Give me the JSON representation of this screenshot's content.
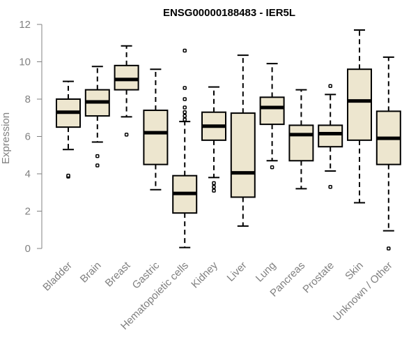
{
  "chart_data": {
    "type": "boxplot",
    "title": "ENSG00000188483 - IER5L",
    "xlabel": "",
    "ylabel": "Expression",
    "ylim": [
      0,
      12
    ],
    "yticks": [
      0,
      2,
      4,
      6,
      8,
      10,
      12
    ],
    "box_fill": "#ede6cf",
    "box_stroke": "#000000",
    "axis_color": "#808080",
    "categories": [
      "Bladder",
      "Brain",
      "Breast",
      "Gastric",
      "Hematopoietic cells",
      "Kidney",
      "Liver",
      "Lung",
      "Pancreas",
      "Prostate",
      "Skin",
      "Unknown / Other"
    ],
    "boxes": [
      {
        "name": "Bladder",
        "whisker_low": 5.3,
        "q1": 6.5,
        "median": 7.3,
        "q3": 8.0,
        "whisker_high": 8.95,
        "outliers": [
          3.85,
          3.9
        ]
      },
      {
        "name": "Brain",
        "whisker_low": 5.7,
        "q1": 7.1,
        "median": 7.85,
        "q3": 8.5,
        "whisker_high": 9.75,
        "outliers": [
          4.45,
          4.95
        ]
      },
      {
        "name": "Breast",
        "whisker_low": 7.05,
        "q1": 8.5,
        "median": 9.05,
        "q3": 9.8,
        "whisker_high": 10.85,
        "outliers": [
          6.1
        ]
      },
      {
        "name": "Gastric",
        "whisker_low": 3.15,
        "q1": 4.5,
        "median": 6.2,
        "q3": 7.4,
        "whisker_high": 9.6,
        "outliers": []
      },
      {
        "name": "Hematopoietic cells",
        "whisker_low": 0.05,
        "q1": 1.9,
        "median": 2.95,
        "q3": 3.9,
        "whisker_high": 6.8,
        "outliers": [
          6.9,
          7.1,
          7.3,
          7.55,
          8.0,
          8.6,
          10.6
        ]
      },
      {
        "name": "Kidney",
        "whisker_low": 3.8,
        "q1": 5.8,
        "median": 6.55,
        "q3": 7.3,
        "whisker_high": 8.65,
        "outliers": [
          3.1,
          3.3,
          3.5
        ]
      },
      {
        "name": "Liver",
        "whisker_low": 1.2,
        "q1": 2.75,
        "median": 4.05,
        "q3": 7.25,
        "whisker_high": 10.35,
        "outliers": []
      },
      {
        "name": "Lung",
        "whisker_low": 4.7,
        "q1": 6.65,
        "median": 7.55,
        "q3": 8.1,
        "whisker_high": 9.9,
        "outliers": [
          4.35
        ]
      },
      {
        "name": "Pancreas",
        "whisker_low": 3.2,
        "q1": 4.7,
        "median": 6.1,
        "q3": 6.6,
        "whisker_high": 8.5,
        "outliers": []
      },
      {
        "name": "Prostate",
        "whisker_low": 4.15,
        "q1": 5.45,
        "median": 6.15,
        "q3": 6.6,
        "whisker_high": 8.25,
        "outliers": [
          3.3,
          8.7
        ]
      },
      {
        "name": "Skin",
        "whisker_low": 2.45,
        "q1": 5.8,
        "median": 7.9,
        "q3": 9.6,
        "whisker_high": 11.7,
        "outliers": []
      },
      {
        "name": "Unknown / Other",
        "whisker_low": 0.95,
        "q1": 4.5,
        "median": 5.9,
        "q3": 7.35,
        "whisker_high": 10.25,
        "outliers": [
          0.0
        ]
      }
    ]
  }
}
